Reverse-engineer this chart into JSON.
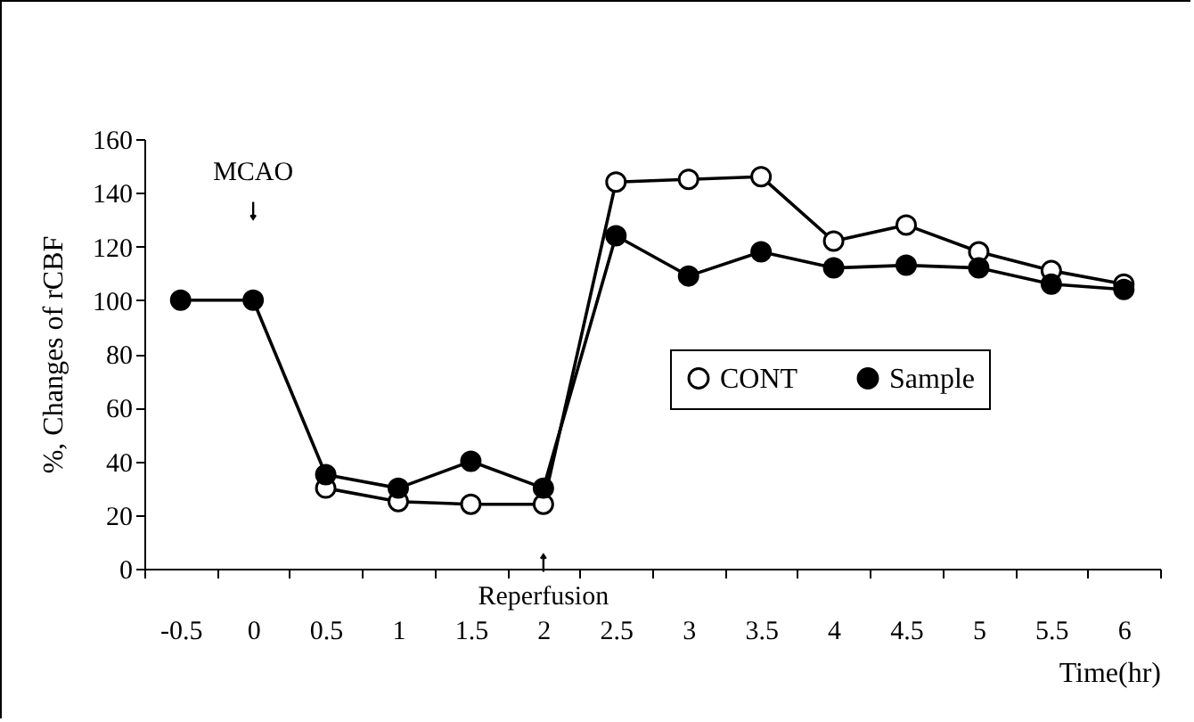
{
  "chart_data": {
    "type": "line",
    "xlabel": "Time(hr)",
    "ylabel": "%, Changes of rCBF",
    "categories": [
      "-0.5",
      "0",
      "0.5",
      "1",
      "1.5",
      "2",
      "2.5",
      "3",
      "3.5",
      "4",
      "4.5",
      "5",
      "5.5",
      "6"
    ],
    "series": [
      {
        "name": "CONT",
        "color": "#000000",
        "values": [
          null,
          null,
          30,
          25,
          24,
          24,
          144,
          145,
          146,
          122,
          128,
          118,
          111,
          106
        ]
      },
      {
        "name": "Sample",
        "color": "#000000",
        "values": [
          100,
          100,
          35,
          30,
          40,
          30,
          124,
          109,
          118,
          112,
          113,
          112,
          106,
          104
        ]
      }
    ],
    "ylim": [
      0,
      160
    ],
    "yticks": [
      0,
      20,
      40,
      60,
      80,
      100,
      120,
      140,
      160
    ],
    "grid": false,
    "legend": "right",
    "marker": "circle",
    "line_style": "solid",
    "annotations": [
      {
        "text": "MCAO",
        "x": "0"
      },
      {
        "text": "Reperfusion",
        "x": "2"
      }
    ]
  }
}
